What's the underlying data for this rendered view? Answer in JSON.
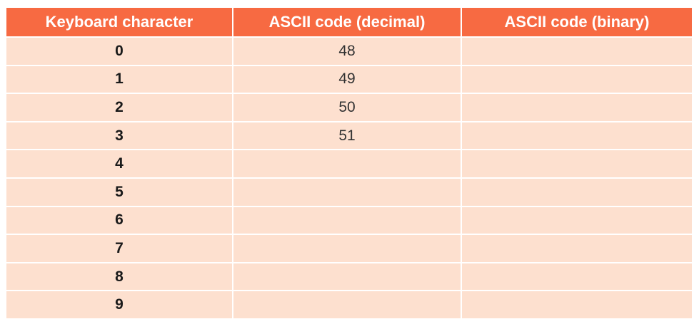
{
  "table": {
    "headers": [
      "Keyboard character",
      "ASCII code (decimal)",
      "ASCII code (binary)"
    ],
    "rows": [
      {
        "character": "0",
        "decimal": "48",
        "binary": ""
      },
      {
        "character": "1",
        "decimal": "49",
        "binary": ""
      },
      {
        "character": "2",
        "decimal": "50",
        "binary": ""
      },
      {
        "character": "3",
        "decimal": "51",
        "binary": ""
      },
      {
        "character": "4",
        "decimal": "",
        "binary": ""
      },
      {
        "character": "5",
        "decimal": "",
        "binary": ""
      },
      {
        "character": "6",
        "decimal": "",
        "binary": ""
      },
      {
        "character": "7",
        "decimal": "",
        "binary": ""
      },
      {
        "character": "8",
        "decimal": "",
        "binary": ""
      },
      {
        "character": "9",
        "decimal": "",
        "binary": ""
      }
    ]
  },
  "colors": {
    "header_background": "#f76a42",
    "row_background": "#fde0cf",
    "header_text": "#ffffff"
  }
}
